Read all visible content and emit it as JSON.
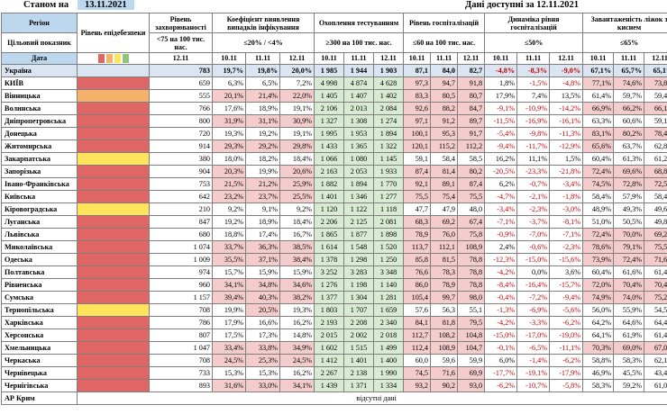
{
  "header": {
    "as_of_label": "Станом на",
    "as_of_date": "13.11.2021",
    "available_label": "Дані доступні за",
    "available_date": "12.11.2021"
  },
  "columns": {
    "region": "Регіон",
    "indicator": "Цільовий показник",
    "date": "Дата",
    "danger": "Рівень епідебезпеки",
    "incidence": "Рівень захворюваності",
    "incidence_target": "<75 на 100 тис. нас.",
    "incidence_date": "12.11",
    "detection": "Коефіцієнт виявлення випадків інфікування",
    "detection_target": "≤20% / <4%",
    "testing": "Охоплення тестуванням",
    "testing_target": "≥300 на 100 тис. нас.",
    "hosp": "Рівень госпіталізацій",
    "hosp_target": "≤60 на 100 тис. нас.",
    "dyn": "Динаміка рівня госпіталізацій",
    "dyn_target": "≤50%",
    "beds": "Завантаженість ліжок з киснем",
    "beds_target": "≤65%",
    "dates": [
      "10.11",
      "11.11",
      "12.11"
    ]
  },
  "legend_colors": [
    "#e06666",
    "#f6b26b",
    "#ffe45c",
    "#93c47d"
  ],
  "rows": [
    {
      "region": "Україна",
      "danger": "",
      "inc": "783",
      "det": [
        "19,7%",
        "19,8%",
        "20,0%"
      ],
      "test": [
        "1 985",
        "1 944",
        "1 903"
      ],
      "hosp": [
        "87,1",
        "84,0",
        "82,7"
      ],
      "dyn": [
        "-4,8%",
        "-8,3%",
        "-9,0%"
      ],
      "beds": [
        "67,1%",
        "65,7%",
        "65,1%"
      ]
    },
    {
      "region": "КИЇВ",
      "danger": "red",
      "inc": "659",
      "det": [
        "6,3%",
        "6,5%",
        "7,2%"
      ],
      "test": [
        "4 998",
        "4 874",
        "4 628"
      ],
      "hosp": [
        "97,3",
        "94,7",
        "91,8"
      ],
      "dyn": [
        "1,8%",
        "-1,5%",
        "-4,8%"
      ],
      "beds": [
        "77,1%",
        "74,6%",
        "73,8%"
      ]
    },
    {
      "region": "Вінницька",
      "danger": "orange",
      "inc": "555",
      "det": [
        "20,1%",
        "21,4%",
        "22,0%"
      ],
      "test": [
        "1 405",
        "1 407",
        "1 402"
      ],
      "hosp": [
        "83,3",
        "80,5",
        "80,7"
      ],
      "dyn": [
        "17,9%",
        "7,4%",
        "13,5%"
      ],
      "beds": [
        "61,4%",
        "59,7%",
        "59,4%"
      ]
    },
    {
      "region": "Волинська",
      "danger": "red",
      "inc": "766",
      "det": [
        "17,6%",
        "18,9%",
        "19,1%"
      ],
      "test": [
        "2 106",
        "2 013",
        "2 084"
      ],
      "hosp": [
        "92,6",
        "88,2",
        "84,7"
      ],
      "dyn": [
        "-9,1%",
        "-10,9%",
        "-14,2%"
      ],
      "beds": [
        "66,9%",
        "66,2%",
        "66,1%"
      ]
    },
    {
      "region": "Дніпропетровська",
      "danger": "red",
      "inc": "800",
      "det": [
        "31,9%",
        "31,1%",
        "30,9%"
      ],
      "test": [
        "1 327",
        "1 308",
        "1 274"
      ],
      "hosp": [
        "97,1",
        "91,2",
        "89,7"
      ],
      "dyn": [
        "-11,5%",
        "-16,9%",
        "-16,1%"
      ],
      "beds": [
        "63,3%",
        "60,6%",
        "59,1%"
      ]
    },
    {
      "region": "Донецька",
      "danger": "red",
      "inc": "720",
      "det": [
        "19,3%",
        "19,2%",
        "19,1%"
      ],
      "test": [
        "1 995",
        "1 953",
        "1 894"
      ],
      "hosp": [
        "100,1",
        "95,3",
        "91,7"
      ],
      "dyn": [
        "-5,4%",
        "-9,8%",
        "-11,3%"
      ],
      "beds": [
        "83,1%",
        "80,2%",
        "78,4%"
      ]
    },
    {
      "region": "Житомирська",
      "danger": "red",
      "inc": "914",
      "det": [
        "29,3%",
        "29,2%",
        "29,8%"
      ],
      "test": [
        "1 433",
        "1 365",
        "1 322"
      ],
      "hosp": [
        "120,1",
        "115,2",
        "112,2"
      ],
      "dyn": [
        "-9,4%",
        "-11,7%",
        "-12,9%"
      ],
      "beds": [
        "65,6%",
        "63,7%",
        "62,8%"
      ]
    },
    {
      "region": "Закарпатська",
      "danger": "yellow",
      "inc": "380",
      "det": [
        "18,0%",
        "18,2%",
        "18,4%"
      ],
      "test": [
        "1 066",
        "1 080",
        "1 145"
      ],
      "hosp": [
        "59,1",
        "58,4",
        "58,5"
      ],
      "dyn": [
        "16,2%",
        "11,1%",
        "1,5%"
      ],
      "beds": [
        "60,4%",
        "61,3%",
        "61,2%"
      ]
    },
    {
      "region": "Запорізька",
      "danger": "red",
      "inc": "904",
      "det": [
        "20,3%",
        "19,9%",
        "20,6%"
      ],
      "test": [
        "2 163",
        "2 053",
        "1 933"
      ],
      "hosp": [
        "87,4",
        "81,4",
        "80,2"
      ],
      "dyn": [
        "-20,5%",
        "-23,3%",
        "-21,8%"
      ],
      "beds": [
        "72,4%",
        "69,6%",
        "68,8%"
      ]
    },
    {
      "region": "Івано-Франківська",
      "danger": "red",
      "inc": "753",
      "det": [
        "21,5%",
        "21,2%",
        "25,9%"
      ],
      "test": [
        "1 882",
        "1 894",
        "1 770"
      ],
      "hosp": [
        "92,1",
        "89,1",
        "87,4"
      ],
      "dyn": [
        "6,2%",
        "-0,7%",
        "-3,4%"
      ],
      "beds": [
        "74,5%",
        "72,8%",
        "72,5%"
      ]
    },
    {
      "region": "Київська",
      "danger": "red",
      "inc": "642",
      "det": [
        "23,2%",
        "23,7%",
        "25,5%"
      ],
      "test": [
        "1 401",
        "1 346",
        "1 277"
      ],
      "hosp": [
        "75,5",
        "75,4",
        "75,5"
      ],
      "dyn": [
        "-4,7%",
        "-2,1%",
        "-1,8%"
      ],
      "beds": [
        "58,4%",
        "57,9%",
        "58,4%"
      ]
    },
    {
      "region": "Кіровоградська",
      "danger": "yellow",
      "inc": "210",
      "det": [
        "9,2%",
        "9,1%",
        "9,2%"
      ],
      "test": [
        "1 120",
        "1 122",
        "1 118"
      ],
      "hosp": [
        "47,7",
        "47,9",
        "48,0"
      ],
      "dyn": [
        "-3,4%",
        "-2,3%",
        "-3,0%"
      ],
      "beds": [
        "48,9%",
        "49,3%",
        "49,6%"
      ]
    },
    {
      "region": "Луганська",
      "danger": "red",
      "inc": "847",
      "det": [
        "19,2%",
        "18,9%",
        "18,4%"
      ],
      "test": [
        "2 206",
        "2 125",
        "2 081"
      ],
      "hosp": [
        "68,3",
        "69,2",
        "67,4"
      ],
      "dyn": [
        "-7,1%",
        "-3,7%",
        "-8,1%"
      ],
      "beds": [
        "51,0%",
        "50,5%",
        "49,8%"
      ]
    },
    {
      "region": "Львівська",
      "danger": "red",
      "inc": "680",
      "det": [
        "18,8%",
        "17,4%",
        "16,7%"
      ],
      "test": [
        "1 865",
        "1 877",
        "1 898"
      ],
      "hosp": [
        "78,9",
        "76,0",
        "75,8"
      ],
      "dyn": [
        "-0,9%",
        "-7,0%",
        "-7,1%"
      ],
      "beds": [
        "72,4%",
        "70,0%",
        "69,2%"
      ]
    },
    {
      "region": "Миколаївська",
      "danger": "red",
      "inc": "1 074",
      "det": [
        "33,7%",
        "36,3%",
        "38,5%"
      ],
      "test": [
        "1 614",
        "1 548",
        "1 520"
      ],
      "hosp": [
        "113,7",
        "112,1",
        "108,9"
      ],
      "dyn": [
        "2,4%",
        "-0,6%",
        "-2,3%"
      ],
      "beds": [
        "78,6%",
        "79,1%",
        "75,5%"
      ]
    },
    {
      "region": "Одеська",
      "danger": "red",
      "inc": "1 009",
      "det": [
        "35,5%",
        "37,1%",
        "38,4%"
      ],
      "test": [
        "1 378",
        "1 298",
        "1 250"
      ],
      "hosp": [
        "85,8",
        "81,5",
        "78,8"
      ],
      "dyn": [
        "-12,3%",
        "-15,0%",
        "-15,6%"
      ],
      "beds": [
        "73,9%",
        "72,4%",
        "71,6%"
      ]
    },
    {
      "region": "Полтавська",
      "danger": "red",
      "inc": "974",
      "det": [
        "15,7%",
        "15,9%",
        "15,9%"
      ],
      "test": [
        "3 252",
        "3 283",
        "3 348"
      ],
      "hosp": [
        "76,6",
        "78,3",
        "78,8"
      ],
      "dyn": [
        "-4,2%",
        "0,0%",
        "3,6%"
      ],
      "beds": [
        "60,4%",
        "61,6%",
        "61,4%"
      ]
    },
    {
      "region": "Рівненська",
      "danger": "red",
      "inc": "960",
      "det": [
        "34,1%",
        "34,8%",
        "34,6%"
      ],
      "test": [
        "1 276",
        "1 198",
        "1 140"
      ],
      "hosp": [
        "86,0",
        "78,9",
        "78,8"
      ],
      "dyn": [
        "-8,4%",
        "-16,4%",
        "-15,7%"
      ],
      "beds": [
        "72,0%",
        "70,4%",
        "70,4%"
      ]
    },
    {
      "region": "Сумська",
      "danger": "red",
      "inc": "1 157",
      "det": [
        "39,4%",
        "40,3%",
        "38,2%"
      ],
      "test": [
        "1 377",
        "1 304",
        "1 281"
      ],
      "hosp": [
        "105,4",
        "99,7",
        "98,0"
      ],
      "dyn": [
        "-0,4%",
        "-7,2%",
        "-9,4%"
      ],
      "beds": [
        "74,9%",
        "74,0%",
        "75,2%"
      ]
    },
    {
      "region": "Тернопільська",
      "danger": "yellow",
      "inc": "708",
      "det": [
        "19,9%",
        "20,5%",
        "19,3%"
      ],
      "test": [
        "1 803",
        "1 707",
        "1 659"
      ],
      "hosp": [
        "57,6",
        "56,3",
        "55,1"
      ],
      "dyn": [
        "-1,3%",
        "-6,9%",
        "-5,6%"
      ],
      "beds": [
        "56,0%",
        "55,9%",
        "54,5%"
      ]
    },
    {
      "region": "Харківська",
      "danger": "red",
      "inc": "786",
      "det": [
        "17,9%",
        "16,6%",
        "16,2%"
      ],
      "test": [
        "2 193",
        "2 208",
        "2 340"
      ],
      "hosp": [
        "84,1",
        "81,8",
        "79,5"
      ],
      "dyn": [
        "-4,2%",
        "-3,3%",
        "-6,2%"
      ],
      "beds": [
        "64,2%",
        "64,6%",
        "64,4%"
      ]
    },
    {
      "region": "Херсонська",
      "danger": "red",
      "inc": "807",
      "det": [
        "17,5%",
        "17,3%",
        "14,8%"
      ],
      "test": [
        "2 015",
        "2 002",
        "2 018"
      ],
      "hosp": [
        "112,7",
        "108,2",
        "104,8"
      ],
      "dyn": [
        "-15,0%",
        "-17,0%",
        "-19,0%"
      ],
      "beds": [
        "64,1%",
        "61,9%",
        "61,4%"
      ]
    },
    {
      "region": "Хмельницька",
      "danger": "red",
      "inc": "1 047",
      "det": [
        "33,4%",
        "33,8%",
        "34,9%"
      ],
      "test": [
        "1 602",
        "1 515",
        "1 499"
      ],
      "hosp": [
        "112,4",
        "108,9",
        "104,7"
      ],
      "dyn": [
        "-0,1%",
        "-6,5%",
        "-11,1%"
      ],
      "beds": [
        "70,3%",
        "69,0%",
        "67,0%"
      ]
    },
    {
      "region": "Черкаська",
      "danger": "red",
      "inc": "708",
      "det": [
        "24,5%",
        "25,3%",
        "24,5%"
      ],
      "test": [
        "1 412",
        "1 401",
        "1 400"
      ],
      "hosp": [
        "60,0",
        "59,6",
        "59,9"
      ],
      "dyn": [
        "6,0%",
        "-1,4%",
        "-6,2%"
      ],
      "beds": [
        "58,8%",
        "58,3%",
        "62,1%"
      ]
    },
    {
      "region": "Чернівецька",
      "danger": "red",
      "inc": "733",
      "det": [
        "15,3%",
        "15,3%",
        "16,2%"
      ],
      "test": [
        "2 267",
        "2 138",
        "1 990"
      ],
      "hosp": [
        "74,5",
        "71,6",
        "69,9"
      ],
      "dyn": [
        "-17,7%",
        "-19,1%",
        "-17,9%"
      ],
      "beds": [
        "46,9%",
        "45,5%",
        "43,4%"
      ]
    },
    {
      "region": "Чернігівська",
      "danger": "red",
      "inc": "893",
      "det": [
        "31,6%",
        "33,0%",
        "34,1%"
      ],
      "test": [
        "1 439",
        "1 371",
        "1 334"
      ],
      "hosp": [
        "93,2",
        "90,2",
        "93,0"
      ],
      "dyn": [
        "-6,2%",
        "-10,7%",
        "-5,8%"
      ],
      "beds": [
        "58,3%",
        "59,2%",
        "61,0%"
      ]
    }
  ],
  "crimea": {
    "region": "АР Крим",
    "note": "відсутні дані"
  }
}
